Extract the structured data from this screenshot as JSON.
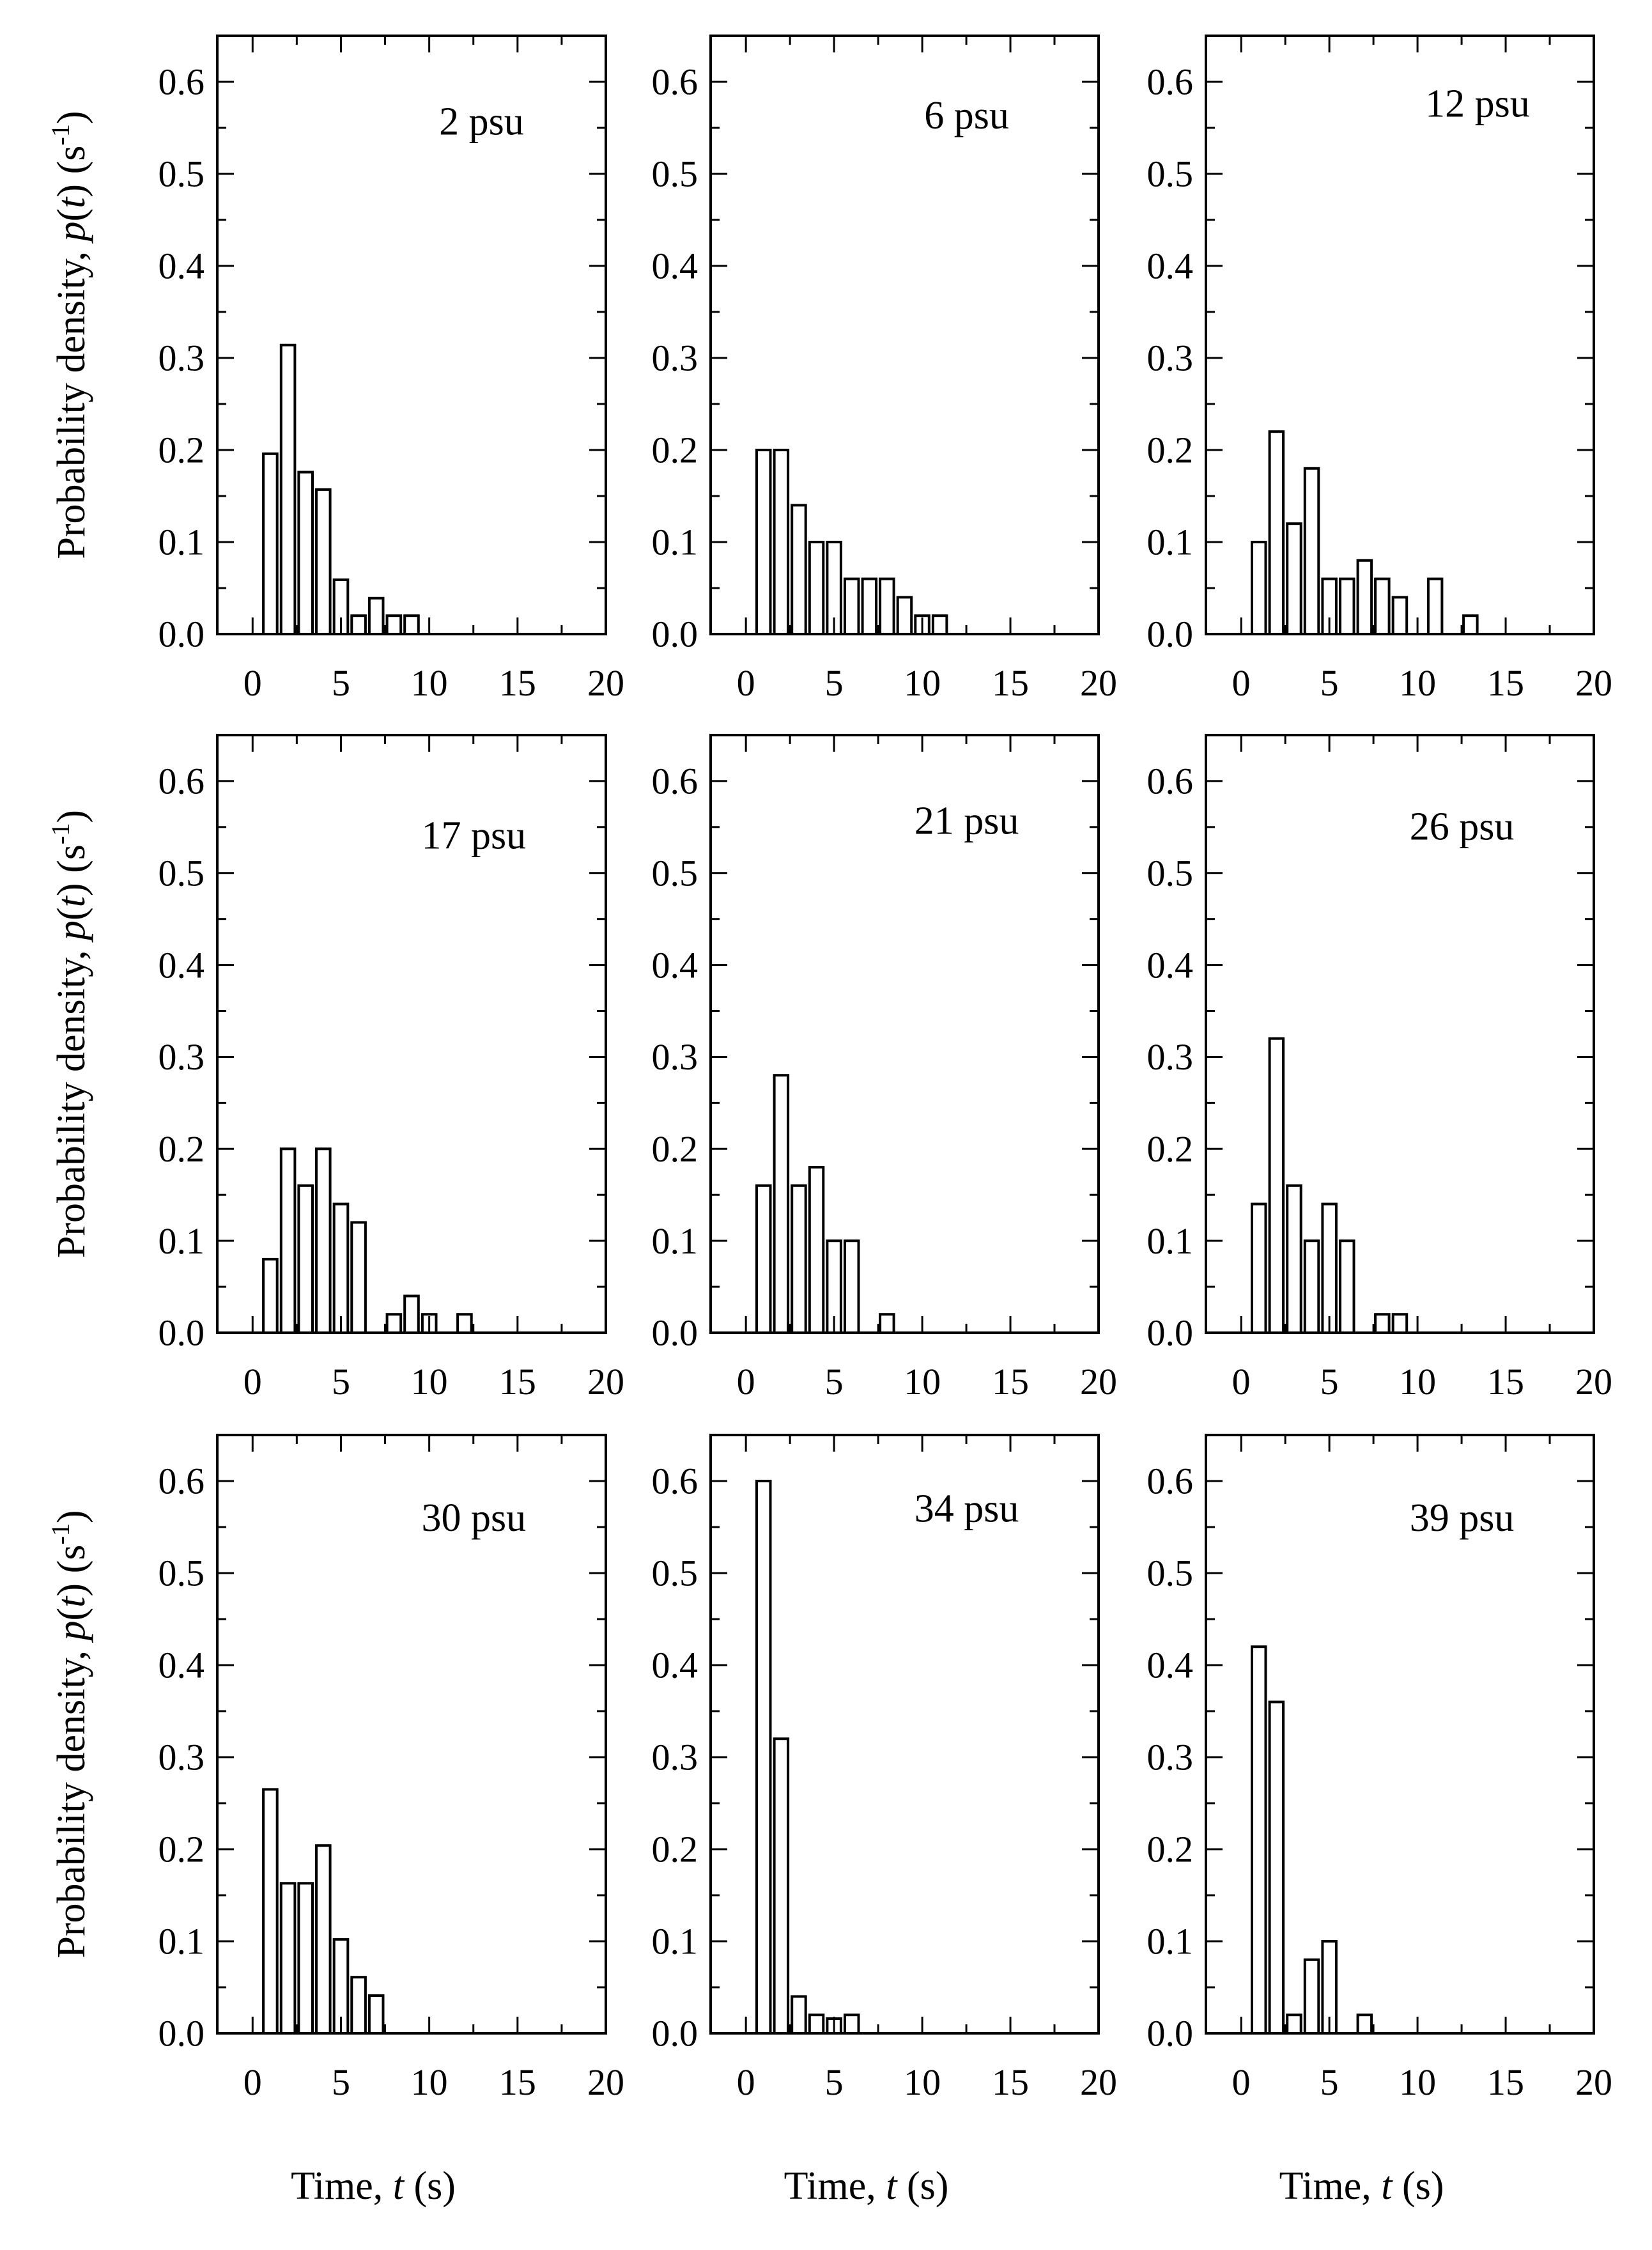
{
  "chart_data": [
    {
      "type": "bar",
      "annotation": "2 psu",
      "x": [
        1,
        2,
        3,
        4,
        5,
        6,
        7,
        8,
        9
      ],
      "values": [
        0.196,
        0.314,
        0.176,
        0.157,
        0.059,
        0.02,
        0.039,
        0.02,
        0.02
      ],
      "xlim": [
        -2,
        20
      ],
      "ylim": [
        0,
        0.65
      ],
      "xticks": [
        "0",
        "5",
        "10",
        "15",
        "20"
      ],
      "yticks": [
        "0.0",
        "0.1",
        "0.2",
        "0.3",
        "0.4",
        "0.5",
        "0.6"
      ]
    },
    {
      "type": "bar",
      "annotation": "6 psu",
      "x": [
        1,
        2,
        3,
        4,
        5,
        6,
        7,
        8,
        9,
        10,
        11
      ],
      "values": [
        0.2,
        0.2,
        0.14,
        0.1,
        0.1,
        0.06,
        0.06,
        0.06,
        0.04,
        0.02,
        0.02
      ],
      "xlim": [
        -2,
        20
      ],
      "ylim": [
        0,
        0.65
      ],
      "xticks": [
        "0",
        "5",
        "10",
        "15",
        "20"
      ],
      "yticks": [
        "0.0",
        "0.1",
        "0.2",
        "0.3",
        "0.4",
        "0.5",
        "0.6"
      ]
    },
    {
      "type": "bar",
      "annotation": "12 psu",
      "x": [
        1,
        2,
        3,
        4,
        5,
        6,
        7,
        8,
        9,
        11,
        13
      ],
      "values": [
        0.1,
        0.22,
        0.12,
        0.18,
        0.06,
        0.06,
        0.08,
        0.06,
        0.04,
        0.06,
        0.02
      ],
      "xlim": [
        -2,
        20
      ],
      "ylim": [
        0,
        0.65
      ],
      "xticks": [
        "0",
        "5",
        "10",
        "15",
        "20"
      ],
      "yticks": [
        "0.0",
        "0.1",
        "0.2",
        "0.3",
        "0.4",
        "0.5",
        "0.6"
      ]
    },
    {
      "type": "bar",
      "annotation": "17 psu",
      "x": [
        1,
        2,
        3,
        4,
        5,
        6,
        8,
        9,
        10,
        12
      ],
      "values": [
        0.08,
        0.2,
        0.16,
        0.2,
        0.14,
        0.12,
        0.02,
        0.04,
        0.02,
        0.02
      ],
      "xlim": [
        -2,
        20
      ],
      "ylim": [
        0,
        0.65
      ],
      "xticks": [
        "0",
        "5",
        "10",
        "15",
        "20"
      ],
      "yticks": [
        "0.0",
        "0.1",
        "0.2",
        "0.3",
        "0.4",
        "0.5",
        "0.6"
      ]
    },
    {
      "type": "bar",
      "annotation": "21 psu",
      "x": [
        1,
        2,
        3,
        4,
        5,
        6,
        8
      ],
      "values": [
        0.16,
        0.28,
        0.16,
        0.18,
        0.1,
        0.1,
        0.02
      ],
      "xlim": [
        -2,
        20
      ],
      "ylim": [
        0,
        0.65
      ],
      "xticks": [
        "0",
        "5",
        "10",
        "15",
        "20"
      ],
      "yticks": [
        "0.0",
        "0.1",
        "0.2",
        "0.3",
        "0.4",
        "0.5",
        "0.6"
      ]
    },
    {
      "type": "bar",
      "annotation": "26 psu",
      "x": [
        1,
        2,
        3,
        4,
        5,
        6,
        8,
        9
      ],
      "values": [
        0.14,
        0.32,
        0.16,
        0.1,
        0.14,
        0.1,
        0.02,
        0.02
      ],
      "xlim": [
        -2,
        20
      ],
      "ylim": [
        0,
        0.65
      ],
      "xticks": [
        "0",
        "5",
        "10",
        "15",
        "20"
      ],
      "yticks": [
        "0.0",
        "0.1",
        "0.2",
        "0.3",
        "0.4",
        "0.5",
        "0.6"
      ]
    },
    {
      "type": "bar",
      "annotation": "30 psu",
      "x": [
        1,
        2,
        3,
        4,
        5,
        6,
        7
      ],
      "values": [
        0.265,
        0.163,
        0.163,
        0.204,
        0.102,
        0.061,
        0.041
      ],
      "xlim": [
        -2,
        20
      ],
      "ylim": [
        0,
        0.65
      ],
      "xticks": [
        "0",
        "5",
        "10",
        "15",
        "20"
      ],
      "yticks": [
        "0.0",
        "0.1",
        "0.2",
        "0.3",
        "0.4",
        "0.5",
        "0.6"
      ]
    },
    {
      "type": "bar",
      "annotation": "34 psu",
      "x": [
        1,
        2,
        3,
        4,
        5,
        6
      ],
      "values": [
        0.6,
        0.32,
        0.04,
        0.02,
        0.016,
        0.02
      ],
      "xlim": [
        -2,
        20
      ],
      "ylim": [
        0,
        0.65
      ],
      "xticks": [
        "0",
        "5",
        "10",
        "15",
        "20"
      ],
      "yticks": [
        "0.0",
        "0.1",
        "0.2",
        "0.3",
        "0.4",
        "0.5",
        "0.6"
      ]
    },
    {
      "type": "bar",
      "annotation": "39 psu",
      "x": [
        1,
        2,
        3,
        4,
        5,
        7
      ],
      "values": [
        0.42,
        0.36,
        0.02,
        0.08,
        0.1,
        0.02
      ],
      "xlim": [
        -2,
        20
      ],
      "ylim": [
        0,
        0.65
      ],
      "xticks": [
        "0",
        "5",
        "10",
        "15",
        "20"
      ],
      "yticks": [
        "0.0",
        "0.1",
        "0.2",
        "0.3",
        "0.4",
        "0.5",
        "0.6"
      ]
    }
  ],
  "labels": {
    "ylabel_prefix": "Probability density, ",
    "ylabel_var": "p",
    "ylabel_open": "(",
    "ylabel_arg": "t",
    "ylabel_close": ") (s",
    "ylabel_exp": "-1",
    "ylabel_end": ")",
    "xlabel_prefix": "Time, ",
    "xlabel_var": "t",
    "xlabel_unit": " (s)"
  }
}
